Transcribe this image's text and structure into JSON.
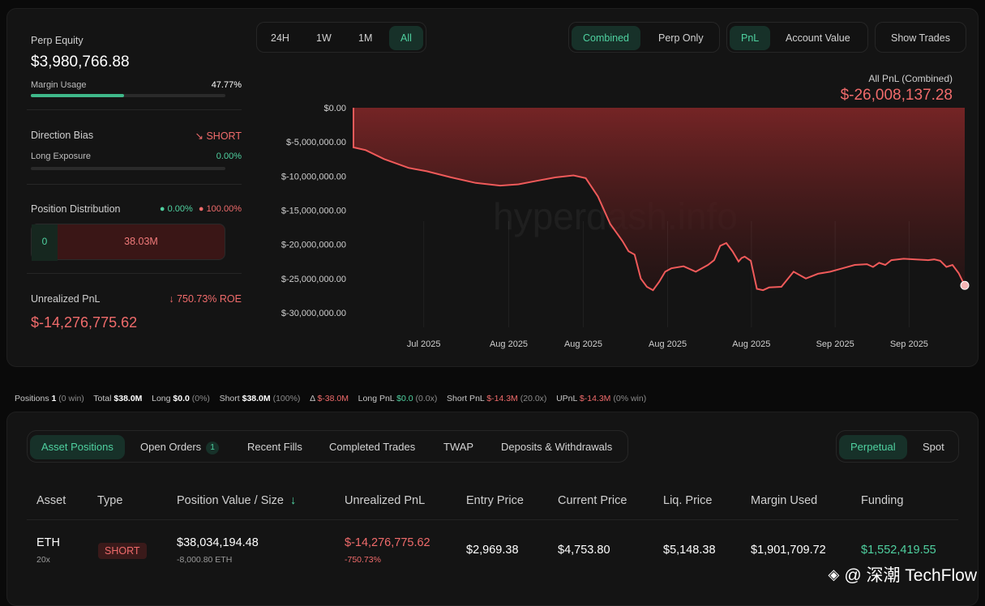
{
  "summary": {
    "perp_equity_label": "Perp Equity",
    "perp_equity_value": "$3,980,766.88",
    "margin_usage_label": "Margin Usage",
    "margin_usage_value": "47.77%",
    "margin_usage_fraction": 0.4777,
    "direction_bias_label": "Direction Bias",
    "direction_bias_value": "SHORT",
    "long_exposure_label": "Long Exposure",
    "long_exposure_value": "0.00%",
    "position_distribution_label": "Position Distribution",
    "dist_long_pct": "0.00%",
    "dist_short_pct": "100.00%",
    "dist_long_value": "0",
    "dist_short_value": "38.03M",
    "unrealized_pnl_label": "Unrealized PnL",
    "roe_value": "750.73% ROE",
    "unrealized_pnl_value": "$-14,276,775.62"
  },
  "time_range": {
    "options": [
      "24H",
      "1W",
      "1M",
      "All"
    ],
    "selected": "All"
  },
  "mode_toggle": {
    "options": [
      "Combined",
      "Perp Only"
    ],
    "selected": "Combined"
  },
  "metric_toggle": {
    "options": [
      "PnL",
      "Account Value"
    ],
    "selected": "PnL"
  },
  "show_trades_label": "Show Trades",
  "chart_header": {
    "title": "All PnL (Combined)",
    "total": "$-26,008,137.28"
  },
  "watermark_chart": "hyperdash.info",
  "chart_data": {
    "type": "area",
    "title": "All PnL (Combined)",
    "ylim": [
      -30000000,
      0
    ],
    "y_ticks": [
      "$0.00",
      "$-5,000,000.00",
      "$-10,000,000.00",
      "$-15,000,000.00",
      "$-20,000,000.00",
      "$-25,000,000.00",
      "$-30,000,000.00"
    ],
    "x_ticks": [
      "Jul 2025",
      "Aug 2025",
      "Aug 2025",
      "Aug 2025",
      "Aug 2025",
      "Sep 2025",
      "Sep 2025"
    ],
    "x_tick_positions": [
      0.115,
      0.254,
      0.376,
      0.514,
      0.651,
      0.788,
      0.909
    ],
    "points_t": [
      0,
      0.02,
      0.05,
      0.09,
      0.12,
      0.16,
      0.2,
      0.24,
      0.27,
      0.3,
      0.33,
      0.36,
      0.38,
      0.4,
      0.42,
      0.44,
      0.45,
      0.46,
      0.47,
      0.48,
      0.49,
      0.5,
      0.51,
      0.52,
      0.54,
      0.56,
      0.58,
      0.59,
      0.6,
      0.61,
      0.62,
      0.63,
      0.635,
      0.64,
      0.65,
      0.66,
      0.67,
      0.68,
      0.7,
      0.72,
      0.74,
      0.76,
      0.78,
      0.8,
      0.82,
      0.84,
      0.85,
      0.86,
      0.87,
      0.88,
      0.9,
      0.92,
      0.94,
      0.95,
      0.96,
      0.97,
      0.98,
      0.99,
      1.0
    ],
    "points_v": [
      -5800000,
      -6200000,
      -7500000,
      -8800000,
      -9300000,
      -10200000,
      -11000000,
      -11400000,
      -11200000,
      -10700000,
      -10200000,
      -9900000,
      -10300000,
      -13000000,
      -17000000,
      -19500000,
      -21000000,
      -21500000,
      -25000000,
      -26200000,
      -26700000,
      -25500000,
      -24000000,
      -23500000,
      -23200000,
      -24000000,
      -23000000,
      -22300000,
      -20200000,
      -19800000,
      -21000000,
      -22500000,
      -22000000,
      -21800000,
      -22400000,
      -26500000,
      -26700000,
      -26300000,
      -26200000,
      -24000000,
      -25000000,
      -24300000,
      -24000000,
      -23500000,
      -23000000,
      -22900000,
      -23300000,
      -22700000,
      -23000000,
      -22300000,
      -22100000,
      -22200000,
      -22300000,
      -22200000,
      -22400000,
      -23300000,
      -23000000,
      -24200000,
      -26000000
    ]
  },
  "stats_bar": {
    "positions_label": "Positions",
    "positions_value": "1",
    "positions_meta": "(0 win)",
    "total_label": "Total",
    "total_value": "$38.0M",
    "long_label": "Long",
    "long_value": "$0.0",
    "long_meta": "(0%)",
    "short_label": "Short",
    "short_value": "$38.0M",
    "short_meta": "(100%)",
    "delta_label": "Δ",
    "delta_value": "$-38.0M",
    "long_pnl_label": "Long PnL",
    "long_pnl_value": "$0.0",
    "long_pnl_meta": "(0.0x)",
    "short_pnl_label": "Short PnL",
    "short_pnl_value": "$-14.3M",
    "short_pnl_meta": "(20.0x)",
    "upnl_label": "UPnL",
    "upnl_value": "$-14.3M",
    "upnl_meta": "(0% win)"
  },
  "tabs": [
    {
      "label": "Asset Positions",
      "active": true
    },
    {
      "label": "Open Orders",
      "badge": "1"
    },
    {
      "label": "Recent Fills"
    },
    {
      "label": "Completed Trades"
    },
    {
      "label": "TWAP"
    },
    {
      "label": "Deposits & Withdrawals"
    }
  ],
  "market_toggle": {
    "options": [
      "Perpetual",
      "Spot"
    ],
    "selected": "Perpetual"
  },
  "table": {
    "headers": [
      "Asset",
      "Type",
      "Position Value / Size",
      "Unrealized PnL",
      "Entry Price",
      "Current Price",
      "Liq. Price",
      "Margin Used",
      "Funding"
    ],
    "rows": [
      {
        "asset": "ETH",
        "leverage": "20x",
        "type": "SHORT",
        "position_value": "$38,034,194.48",
        "position_size": "-8,000.80 ETH",
        "unrealized_pnl": "$-14,276,775.62",
        "unrealized_pct": "-750.73%",
        "entry_price": "$2,969.38",
        "current_price": "$4,753.80",
        "liq_price": "$5,148.38",
        "margin_used": "$1,901,709.72",
        "funding": "$1,552,419.55"
      }
    ]
  },
  "brand_watermark": "@ 深潮 TechFlow"
}
